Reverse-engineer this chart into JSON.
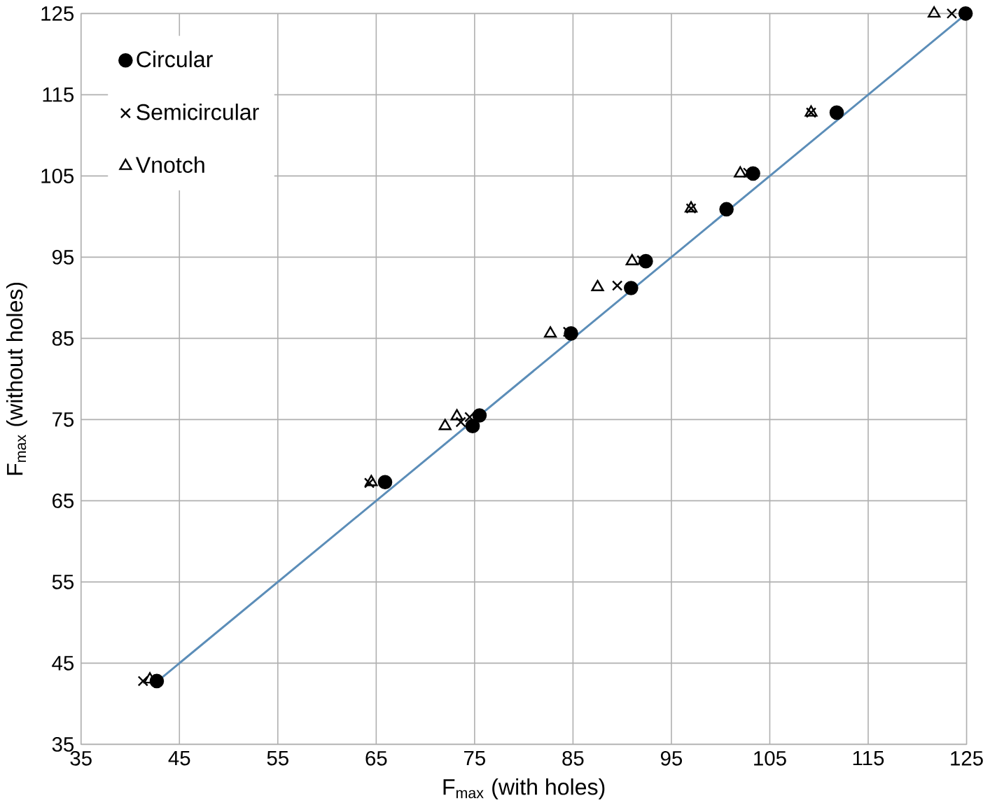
{
  "chart_data": {
    "type": "scatter",
    "xlabel": "F$_{max}$ (with holes)",
    "ylabel": "F$_{max}$ (without holes)",
    "xlim": [
      35,
      125
    ],
    "ylim": [
      35,
      125
    ],
    "xticks": [
      35,
      45,
      55,
      65,
      75,
      85,
      95,
      105,
      115,
      125
    ],
    "yticks": [
      35,
      45,
      55,
      65,
      75,
      85,
      95,
      105,
      115,
      125
    ],
    "grid": true,
    "legend": "top left",
    "series": [
      {
        "name": "Circular",
        "color": "#000000",
        "marker": "circle",
        "x": [
          42.7,
          65.9,
          74.8,
          75.5,
          84.8,
          90.9,
          92.4,
          100.6,
          103.3,
          111.8,
          124.9
        ],
        "values": [
          42.8,
          67.3,
          74.2,
          75.5,
          85.6,
          91.2,
          94.5,
          100.9,
          105.3,
          112.8,
          125
        ]
      },
      {
        "name": "Semicircular",
        "color": "#000000",
        "marker": "cross",
        "x": [
          41.3,
          64.3,
          73.6,
          74.5,
          84.5,
          89.5,
          92.0,
          97.0,
          102.8,
          109.2,
          123.5
        ],
        "values": [
          42.8,
          67.2,
          74.7,
          75.3,
          85.8,
          91.5,
          94.6,
          101.0,
          105.4,
          112.8,
          125
        ]
      },
      {
        "name": "Vnotch",
        "color": "#000000",
        "marker": "triangle",
        "x": [
          42.0,
          64.5,
          72.0,
          73.2,
          82.7,
          87.5,
          91.0,
          97.0,
          102.0,
          109.2,
          121.7
        ],
        "values": [
          43.0,
          67.3,
          74.2,
          75.4,
          85.6,
          91.3,
          94.5,
          101.0,
          105.3,
          112.8,
          125
        ]
      },
      {
        "type": "line",
        "color": "#5b8db8",
        "line_style": "solid",
        "x": [
          42.7,
          125
        ],
        "values": [
          42.7,
          125
        ]
      }
    ]
  }
}
